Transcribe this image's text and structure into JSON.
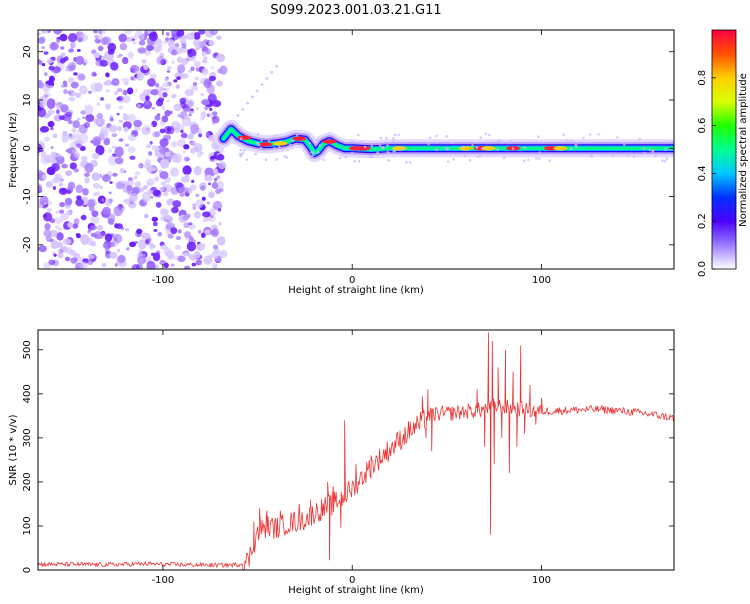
{
  "title": "S099.2023.001.03.21.G11",
  "chart_data": [
    {
      "type": "heatmap",
      "xlabel": "Height of straight line (km)",
      "ylabel": "Frequency (Hz)",
      "xlim": [
        -166,
        170
      ],
      "ylim": [
        -25,
        24.5
      ],
      "xticks": [
        -100,
        0,
        100
      ],
      "yticks": [
        -20,
        -10,
        0,
        10,
        20
      ],
      "colorbar": {
        "label": "Normalized spectral amplitude",
        "range": [
          0,
          1
        ],
        "ticks": [
          0.0,
          0.2,
          0.4,
          0.6,
          0.8
        ],
        "colors": [
          "#ffffff",
          "#9b7cff",
          "#4b00ff",
          "#0030ff",
          "#00c8ff",
          "#00ff90",
          "#20ff00",
          "#d8ff00",
          "#ffd000",
          "#ff5000",
          "#ff0040"
        ]
      },
      "noise_region_x": [
        -166,
        -68
      ],
      "ridge": {
        "x": [
          -68,
          -64,
          -60,
          -55,
          -50,
          -45,
          -40,
          -35,
          -30,
          -25,
          -22,
          -20,
          -18,
          -15,
          -12,
          -8,
          -4,
          0,
          10,
          20,
          40,
          60,
          80,
          100,
          120,
          140,
          160,
          170
        ],
        "freq": [
          2,
          4,
          2.5,
          1.5,
          1.0,
          0.8,
          1.0,
          1.3,
          2.0,
          1.8,
          0.3,
          -1.0,
          -0.5,
          1.0,
          1.5,
          0.6,
          0.0,
          0.0,
          -0.2,
          0.0,
          0.0,
          0.0,
          0.0,
          0.0,
          0.0,
          0.0,
          0.0,
          0.0
        ]
      }
    },
    {
      "type": "line",
      "xlabel": "Height of straight line (km)",
      "ylabel": "SNR (10 * v/v)",
      "xlim": [
        -166,
        170
      ],
      "ylim": [
        0,
        545
      ],
      "xticks": [
        -100,
        0,
        100
      ],
      "yticks": [
        0,
        100,
        200,
        300,
        400,
        500
      ],
      "color": "#ee3333",
      "series": [
        {
          "x": [
            -166,
            -150,
            -130,
            -110,
            -90,
            -70,
            -60,
            -55,
            -52,
            -50,
            -45,
            -40,
            -35,
            -30,
            -25,
            -20,
            -15,
            -10,
            -5,
            0,
            5,
            10,
            15,
            20,
            25,
            30,
            35,
            38,
            40,
            45,
            50,
            60,
            65,
            70,
            72,
            75,
            80,
            85,
            90,
            95,
            100,
            110,
            120,
            130,
            140,
            150,
            160,
            170
          ],
          "y": [
            13,
            13,
            12,
            14,
            12,
            11,
            12,
            20,
            60,
            85,
            100,
            95,
            105,
            110,
            115,
            130,
            140,
            150,
            165,
            185,
            210,
            235,
            255,
            275,
            295,
            315,
            330,
            340,
            350,
            355,
            355,
            360,
            362,
            365,
            370,
            372,
            370,
            368,
            365,
            362,
            360,
            362,
            364,
            365,
            362,
            358,
            352,
            345
          ],
          "spikes": [
            {
              "x": -52,
              "y": 110
            },
            {
              "x": -49,
              "y": 140
            },
            {
              "x": -45,
              "y": 135
            },
            {
              "x": -38,
              "y": 135
            },
            {
              "x": -28,
              "y": 150
            },
            {
              "x": -22,
              "y": 160
            },
            {
              "x": -17,
              "y": 120
            },
            {
              "x": -13,
              "y": 200
            },
            {
              "x": -12,
              "y": 22
            },
            {
              "x": -10,
              "y": 190
            },
            {
              "x": -6,
              "y": 95
            },
            {
              "x": -4,
              "y": 340
            },
            {
              "x": 2,
              "y": 240
            },
            {
              "x": 10,
              "y": 260
            },
            {
              "x": 37,
              "y": 395
            },
            {
              "x": 39,
              "y": 300
            },
            {
              "x": 40,
              "y": 410
            },
            {
              "x": 42,
              "y": 270
            },
            {
              "x": 66,
              "y": 410
            },
            {
              "x": 70,
              "y": 280
            },
            {
              "x": 72,
              "y": 540
            },
            {
              "x": 73,
              "y": 80
            },
            {
              "x": 74,
              "y": 520
            },
            {
              "x": 75,
              "y": 240
            },
            {
              "x": 77,
              "y": 460
            },
            {
              "x": 79,
              "y": 300
            },
            {
              "x": 81,
              "y": 500
            },
            {
              "x": 83,
              "y": 220
            },
            {
              "x": 85,
              "y": 450
            },
            {
              "x": 87,
              "y": 280
            },
            {
              "x": 89,
              "y": 510
            },
            {
              "x": 91,
              "y": 310
            },
            {
              "x": 94,
              "y": 420
            },
            {
              "x": 97,
              "y": 330
            },
            {
              "x": 100,
              "y": 390
            }
          ]
        }
      ]
    }
  ]
}
